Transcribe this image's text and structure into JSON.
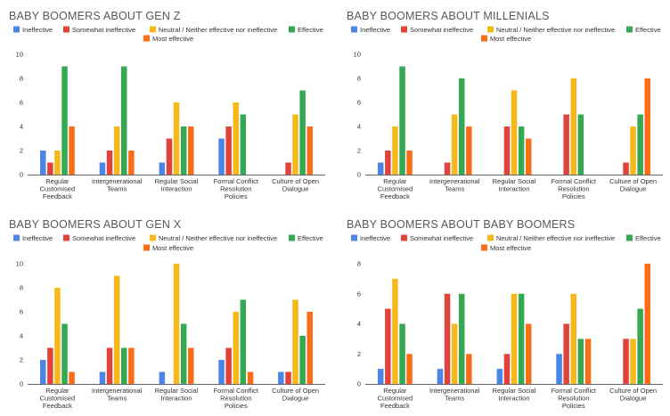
{
  "series_colors": [
    "#4a86e8",
    "#e0433b",
    "#f6b81a",
    "#34a853",
    "#fb6d19"
  ],
  "chart_data": [
    {
      "type": "bar",
      "title": "BABY BOOMERS ABOUT GEN Z",
      "categories": [
        [
          "Regular",
          "Customised",
          "Feedback"
        ],
        [
          "Intergenerational",
          "Teams"
        ],
        [
          "Regular Social",
          "Interaction"
        ],
        [
          "Formal Conflict",
          "Resolution",
          "Policies"
        ],
        [
          "Culture of Open",
          "Dialogue"
        ]
      ],
      "ylim": [
        0,
        10
      ],
      "yticks": [
        0,
        2,
        4,
        6,
        8,
        10
      ],
      "legend_position": "top",
      "grid": false,
      "series": [
        {
          "name": "Ineffective",
          "values": [
            2,
            1,
            1,
            3,
            0
          ]
        },
        {
          "name": "Somewhat ineffective",
          "values": [
            1,
            2,
            3,
            4,
            1
          ]
        },
        {
          "name": "Neutral / Neither effective nor ineffective",
          "values": [
            2,
            4,
            6,
            6,
            5
          ]
        },
        {
          "name": "Effective",
          "values": [
            9,
            9,
            4,
            5,
            7
          ]
        },
        {
          "name": "Most effective",
          "values": [
            4,
            2,
            4,
            0,
            4
          ]
        }
      ]
    },
    {
      "type": "bar",
      "title": "BABY BOOMERS ABOUT MILLENIALS",
      "categories": [
        [
          "Regular",
          "Customised",
          "Feedback"
        ],
        [
          "Intergenerational",
          "Teams"
        ],
        [
          "Regular Social",
          "Interaction"
        ],
        [
          "Formal Conflict",
          "Resolution",
          "Policies"
        ],
        [
          "Culture of Open",
          "Dialogue"
        ]
      ],
      "ylim": [
        0,
        10
      ],
      "yticks": [
        0,
        2,
        4,
        6,
        8,
        10
      ],
      "legend_position": "top",
      "grid": false,
      "series": [
        {
          "name": "Ineffective",
          "values": [
            1,
            0,
            0,
            0,
            0
          ]
        },
        {
          "name": "Somewhat ineffective",
          "values": [
            2,
            1,
            4,
            5,
            1
          ]
        },
        {
          "name": "Neutral / Neither effective nor ineffective",
          "values": [
            4,
            5,
            7,
            8,
            4
          ]
        },
        {
          "name": "Effective",
          "values": [
            9,
            8,
            4,
            5,
            5
          ]
        },
        {
          "name": "Most effective",
          "values": [
            2,
            4,
            3,
            0,
            8
          ]
        }
      ]
    },
    {
      "type": "bar",
      "title": "BABY BOOMERS ABOUT GEN X",
      "categories": [
        [
          "Regular",
          "Customised",
          "Feedback"
        ],
        [
          "Intergenerational",
          "Teams"
        ],
        [
          "Regular Social",
          "Interaction"
        ],
        [
          "Formal Conflict",
          "Resolution",
          "Policies"
        ],
        [
          "Culture of Open",
          "Dialogue"
        ]
      ],
      "ylim": [
        0,
        10
      ],
      "yticks": [
        0,
        2,
        4,
        6,
        8,
        10
      ],
      "legend_position": "top",
      "grid": false,
      "series": [
        {
          "name": "Ineffective",
          "values": [
            2,
            1,
            1,
            2,
            1
          ]
        },
        {
          "name": "Somewhat ineffective",
          "values": [
            3,
            3,
            0,
            3,
            1
          ]
        },
        {
          "name": "Neutral / Neither effective nor ineffective",
          "values": [
            8,
            9,
            10,
            6,
            7
          ]
        },
        {
          "name": "Effective",
          "values": [
            5,
            3,
            5,
            7,
            4
          ]
        },
        {
          "name": "Most effective",
          "values": [
            1,
            3,
            3,
            1,
            6
          ]
        }
      ]
    },
    {
      "type": "bar",
      "title": "BABY BOOMERS ABOUT BABY BOOMERS",
      "categories": [
        [
          "Regular",
          "Customised",
          "Feedback"
        ],
        [
          "Intergenerational",
          "Teams"
        ],
        [
          "Regular Social",
          "Interaction"
        ],
        [
          "Formal Conflict",
          "Resolution",
          "Policies"
        ],
        [
          "Culture of Open",
          "Dialogue"
        ]
      ],
      "ylim": [
        0,
        8
      ],
      "yticks": [
        0,
        2,
        4,
        6,
        8
      ],
      "legend_position": "top",
      "grid": false,
      "series": [
        {
          "name": "Ineffective",
          "values": [
            1,
            1,
            1,
            2,
            0
          ]
        },
        {
          "name": "Somewhat ineffective",
          "values": [
            5,
            6,
            2,
            4,
            3
          ]
        },
        {
          "name": "Neutral / Neither effective nor ineffective",
          "values": [
            7,
            4,
            6,
            6,
            3
          ]
        },
        {
          "name": "Effective",
          "values": [
            4,
            6,
            6,
            3,
            5
          ]
        },
        {
          "name": "Most effective",
          "values": [
            2,
            2,
            4,
            3,
            8
          ]
        }
      ]
    }
  ]
}
